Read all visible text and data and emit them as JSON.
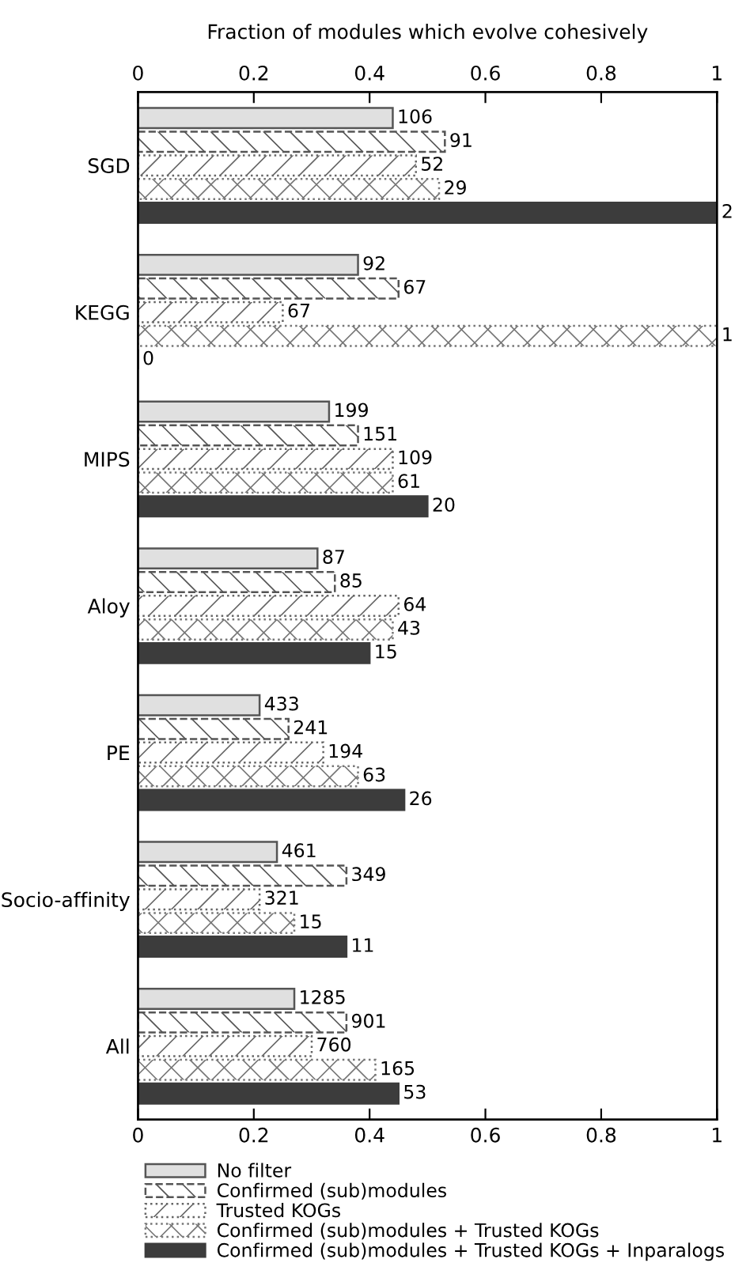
{
  "chart_data": {
    "type": "bar",
    "orientation": "horizontal",
    "x2label": "Fraction of modules which evolve cohesively",
    "categories": [
      "SGD",
      "KEGG",
      "MIPS",
      "Aloy",
      "PE",
      "Socio-affinity",
      "All"
    ],
    "series": [
      {
        "name": "No filter",
        "color": "#e0e0e0",
        "values": [
          0.44,
          0.38,
          0.33,
          0.31,
          0.21,
          0.24,
          0.27
        ]
      },
      {
        "name": "Confirmed (sub)modules",
        "color": "#555555",
        "line_style": "dashed",
        "values": [
          0.53,
          0.45,
          0.38,
          0.34,
          0.26,
          0.36,
          0.36
        ]
      },
      {
        "name": "Trusted KOGs",
        "color": "#666666",
        "line_style": "dotted",
        "values": [
          0.48,
          0.25,
          0.44,
          0.45,
          0.32,
          0.21,
          0.3
        ]
      },
      {
        "name": "Confirmed (sub)modules + Trusted KOGs",
        "color": "#777777",
        "line_style": "dotted",
        "values": [
          0.52,
          1.0,
          0.44,
          0.44,
          0.38,
          0.27,
          0.41
        ]
      },
      {
        "name": "Confirmed (sub)modules + Trusted KOGs + Inparalogs",
        "color": "#3c3c3c",
        "values": [
          1.0,
          0,
          0.5,
          0.4,
          0.46,
          0.36,
          0.45
        ]
      }
    ],
    "annotations": [
      "106",
      "92",
      "199",
      "87",
      "433",
      "461",
      "1285",
      "91",
      "67",
      "151",
      "85",
      "241",
      "349",
      "901",
      "52",
      "67",
      "109",
      "64",
      "194",
      "321",
      "760",
      "29",
      "1",
      "61",
      "43",
      "63",
      "15",
      "165",
      "2",
      "0",
      "20",
      "15",
      "26",
      "11",
      "53"
    ],
    "xlim": [
      0,
      1
    ],
    "xticks": [
      0,
      0.2,
      0.4,
      0.6,
      0.8,
      1
    ],
    "x2lim": [
      0,
      1
    ],
    "x2ticks": [
      0,
      0.2,
      0.4,
      0.6,
      0.8,
      1
    ],
    "grid": false,
    "legend": "bottom"
  }
}
